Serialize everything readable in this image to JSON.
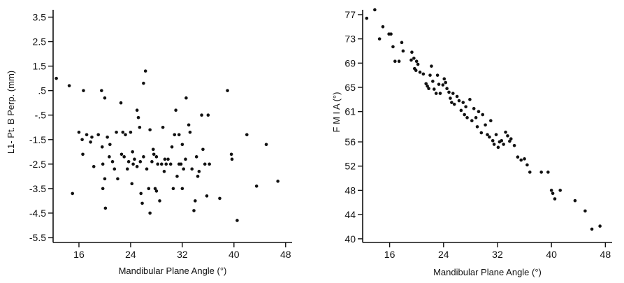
{
  "chart_data": [
    {
      "type": "scatter",
      "xlabel": "Mandibular Plane Angle (°)",
      "ylabel": "L1- Pt. B Perp. (mm)",
      "xlim": [
        12,
        49
      ],
      "ylim": [
        -5.7,
        3.8
      ],
      "xticks": [
        16,
        24,
        32,
        40,
        48
      ],
      "xtick_labels": [
        "16",
        "24",
        "32",
        "40",
        "48"
      ],
      "yticks": [
        3.5,
        2.5,
        1.5,
        0.5,
        -0.5,
        -1.5,
        -2.5,
        -3.5,
        -4.5,
        -5.5
      ],
      "ytick_labels": [
        "3.5",
        "2.5",
        "1.5",
        ".5",
        "-.5",
        "-1.5",
        "-2.5",
        "-3.5",
        "-4.5",
        "-5.5"
      ],
      "grid": false,
      "points": [
        [
          12.5,
          1.0
        ],
        [
          14.5,
          0.7
        ],
        [
          15.0,
          -3.7
        ],
        [
          16.0,
          -1.2
        ],
        [
          16.5,
          -1.5
        ],
        [
          16.6,
          -2.1
        ],
        [
          16.7,
          0.5
        ],
        [
          17.2,
          -1.3
        ],
        [
          17.8,
          -1.6
        ],
        [
          18.0,
          -1.4
        ],
        [
          18.3,
          -2.6
        ],
        [
          19.0,
          -1.3
        ],
        [
          19.5,
          0.5
        ],
        [
          19.6,
          -1.8
        ],
        [
          19.7,
          -2.5
        ],
        [
          19.7,
          -3.5
        ],
        [
          20.0,
          0.2
        ],
        [
          20.0,
          -3.1
        ],
        [
          20.1,
          -4.3
        ],
        [
          20.4,
          -1.4
        ],
        [
          20.7,
          -2.2
        ],
        [
          20.8,
          -1.7
        ],
        [
          21.2,
          -2.4
        ],
        [
          21.5,
          -2.7
        ],
        [
          21.8,
          -1.2
        ],
        [
          22.0,
          -3.1
        ],
        [
          22.5,
          0.0
        ],
        [
          22.6,
          -2.1
        ],
        [
          22.8,
          -1.2
        ],
        [
          23.0,
          -2.2
        ],
        [
          23.2,
          -1.3
        ],
        [
          23.5,
          -2.7
        ],
        [
          23.7,
          -2.4
        ],
        [
          24.0,
          -1.2
        ],
        [
          24.2,
          -3.3
        ],
        [
          24.3,
          -2.0
        ],
        [
          24.4,
          -2.5
        ],
        [
          24.6,
          -2.3
        ],
        [
          25.0,
          -0.3
        ],
        [
          25.0,
          -2.6
        ],
        [
          25.2,
          -0.6
        ],
        [
          25.4,
          -1.0
        ],
        [
          25.5,
          -2.4
        ],
        [
          25.6,
          -3.7
        ],
        [
          25.8,
          -4.1
        ],
        [
          26.0,
          0.8
        ],
        [
          26.0,
          -2.2
        ],
        [
          26.3,
          1.3
        ],
        [
          26.5,
          -2.7
        ],
        [
          26.8,
          -3.5
        ],
        [
          27.0,
          -1.1
        ],
        [
          27.0,
          -4.5
        ],
        [
          27.3,
          -2.4
        ],
        [
          27.5,
          -1.9
        ],
        [
          27.6,
          -2.1
        ],
        [
          27.8,
          -3.5
        ],
        [
          28.0,
          -3.6
        ],
        [
          28.0,
          -2.2
        ],
        [
          28.2,
          -2.5
        ],
        [
          28.5,
          -4.0
        ],
        [
          28.8,
          -2.5
        ],
        [
          29.0,
          -1.0
        ],
        [
          29.2,
          -2.8
        ],
        [
          29.3,
          -2.3
        ],
        [
          29.5,
          -2.5
        ],
        [
          29.8,
          -2.3
        ],
        [
          30.2,
          -2.5
        ],
        [
          30.4,
          -1.8
        ],
        [
          30.6,
          -3.5
        ],
        [
          30.8,
          -1.3
        ],
        [
          31.0,
          -0.3
        ],
        [
          31.2,
          -3.0
        ],
        [
          31.5,
          -2.5
        ],
        [
          31.5,
          -1.3
        ],
        [
          31.8,
          -2.5
        ],
        [
          32.0,
          -3.5
        ],
        [
          32.0,
          -1.7
        ],
        [
          32.2,
          -2.7
        ],
        [
          32.5,
          -2.3
        ],
        [
          32.6,
          0.2
        ],
        [
          33.0,
          -0.9
        ],
        [
          33.2,
          -1.2
        ],
        [
          33.5,
          -2.7
        ],
        [
          33.8,
          -4.4
        ],
        [
          34.0,
          -4.0
        ],
        [
          34.2,
          -2.2
        ],
        [
          34.4,
          -3.0
        ],
        [
          34.6,
          -2.8
        ],
        [
          35.0,
          -0.5
        ],
        [
          35.2,
          -1.9
        ],
        [
          35.5,
          -2.5
        ],
        [
          35.8,
          -3.8
        ],
        [
          36.0,
          -0.5
        ],
        [
          36.2,
          -2.5
        ],
        [
          37.8,
          -3.9
        ],
        [
          39.0,
          0.5
        ],
        [
          39.6,
          -2.1
        ],
        [
          39.7,
          -2.3
        ],
        [
          40.5,
          -4.8
        ],
        [
          42.0,
          -1.3
        ],
        [
          43.5,
          -3.4
        ],
        [
          45.0,
          -1.7
        ],
        [
          46.8,
          -3.2
        ]
      ]
    },
    {
      "type": "scatter",
      "xlabel": "Mandibular Plane Angle (°)",
      "ylabel": "F M I A (°)",
      "xlim": [
        12,
        49
      ],
      "ylim": [
        39.4,
        77.8
      ],
      "xticks": [
        16,
        24,
        32,
        40,
        48
      ],
      "xtick_labels": [
        "16",
        "24",
        "32",
        "40",
        "48"
      ],
      "yticks": [
        77,
        73,
        69,
        65,
        61,
        56,
        52,
        48,
        44,
        40
      ],
      "ytick_labels": [
        "77",
        "73",
        "69",
        "65",
        "61",
        "56",
        "52",
        "48",
        "44",
        "40"
      ],
      "grid": false,
      "points": [
        [
          12.6,
          76.4
        ],
        [
          13.8,
          77.8
        ],
        [
          14.5,
          73.0
        ],
        [
          15.0,
          75.0
        ],
        [
          15.9,
          73.8
        ],
        [
          16.2,
          73.8
        ],
        [
          16.5,
          71.7
        ],
        [
          16.8,
          69.3
        ],
        [
          17.4,
          69.3
        ],
        [
          17.8,
          72.4
        ],
        [
          18.0,
          71.0
        ],
        [
          19.2,
          69.5
        ],
        [
          19.3,
          70.8
        ],
        [
          19.6,
          69.8
        ],
        [
          19.7,
          68.1
        ],
        [
          19.9,
          67.8
        ],
        [
          20.0,
          69.3
        ],
        [
          20.2,
          68.8
        ],
        [
          20.5,
          67.5
        ],
        [
          21.0,
          67.2
        ],
        [
          21.4,
          65.6
        ],
        [
          21.6,
          65.2
        ],
        [
          21.8,
          64.8
        ],
        [
          22.0,
          67.0
        ],
        [
          22.2,
          68.5
        ],
        [
          22.4,
          66.0
        ],
        [
          22.6,
          64.7
        ],
        [
          22.9,
          64.0
        ],
        [
          23.1,
          67.0
        ],
        [
          23.3,
          65.5
        ],
        [
          23.5,
          64.0
        ],
        [
          23.9,
          65.4
        ],
        [
          24.1,
          66.4
        ],
        [
          24.3,
          65.8
        ],
        [
          24.5,
          64.8
        ],
        [
          24.8,
          64.2
        ],
        [
          25.0,
          63.2
        ],
        [
          25.2,
          62.5
        ],
        [
          25.4,
          64.0
        ],
        [
          25.6,
          62.2
        ],
        [
          26.0,
          63.5
        ],
        [
          26.3,
          62.8
        ],
        [
          26.6,
          61.2
        ],
        [
          26.9,
          62.5
        ],
        [
          27.1,
          60.5
        ],
        [
          27.3,
          61.8
        ],
        [
          27.5,
          60.0
        ],
        [
          27.9,
          63.0
        ],
        [
          28.2,
          59.5
        ],
        [
          28.5,
          61.5
        ],
        [
          28.8,
          60.0
        ],
        [
          29.0,
          58.5
        ],
        [
          29.2,
          61.0
        ],
        [
          29.6,
          57.5
        ],
        [
          29.8,
          60.5
        ],
        [
          30.2,
          58.8
        ],
        [
          30.5,
          57.2
        ],
        [
          30.8,
          56.8
        ],
        [
          31.0,
          59.5
        ],
        [
          31.3,
          56.2
        ],
        [
          31.5,
          55.6
        ],
        [
          31.8,
          57.2
        ],
        [
          32.1,
          55.1
        ],
        [
          32.3,
          56.0
        ],
        [
          32.6,
          56.2
        ],
        [
          32.9,
          55.6
        ],
        [
          33.2,
          57.6
        ],
        [
          33.5,
          57.0
        ],
        [
          33.8,
          56.1
        ],
        [
          34.0,
          56.5
        ],
        [
          34.5,
          55.4
        ],
        [
          35.0,
          53.5
        ],
        [
          35.5,
          53.0
        ],
        [
          36.0,
          53.2
        ],
        [
          36.4,
          52.2
        ],
        [
          36.8,
          51.0
        ],
        [
          38.5,
          51.0
        ],
        [
          39.5,
          51.0
        ],
        [
          40.0,
          48.0
        ],
        [
          40.2,
          47.5
        ],
        [
          40.5,
          46.6
        ],
        [
          41.3,
          48.0
        ],
        [
          43.5,
          46.3
        ],
        [
          45.0,
          44.6
        ],
        [
          46.0,
          41.6
        ],
        [
          47.2,
          42.1
        ]
      ]
    }
  ]
}
